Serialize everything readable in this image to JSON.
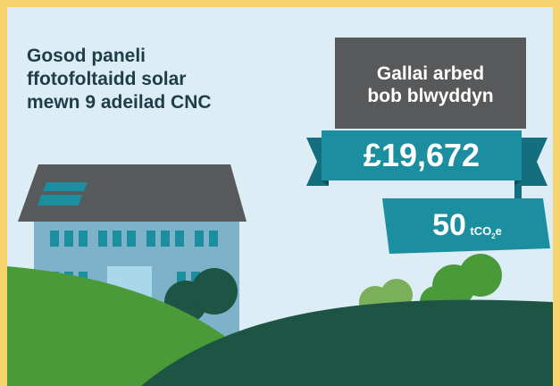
{
  "heading": {
    "lines": [
      "Gosod paneli",
      "ffotofoltaidd solar",
      "mewn 9 adeilad CNC"
    ]
  },
  "box": {
    "lines": [
      "Gallai arbed",
      "bob blwyddyn"
    ]
  },
  "saving": "£19,672",
  "carbon": {
    "amount": "50",
    "unit": "tCO",
    "subscript": "2",
    "suffix": "e"
  }
}
